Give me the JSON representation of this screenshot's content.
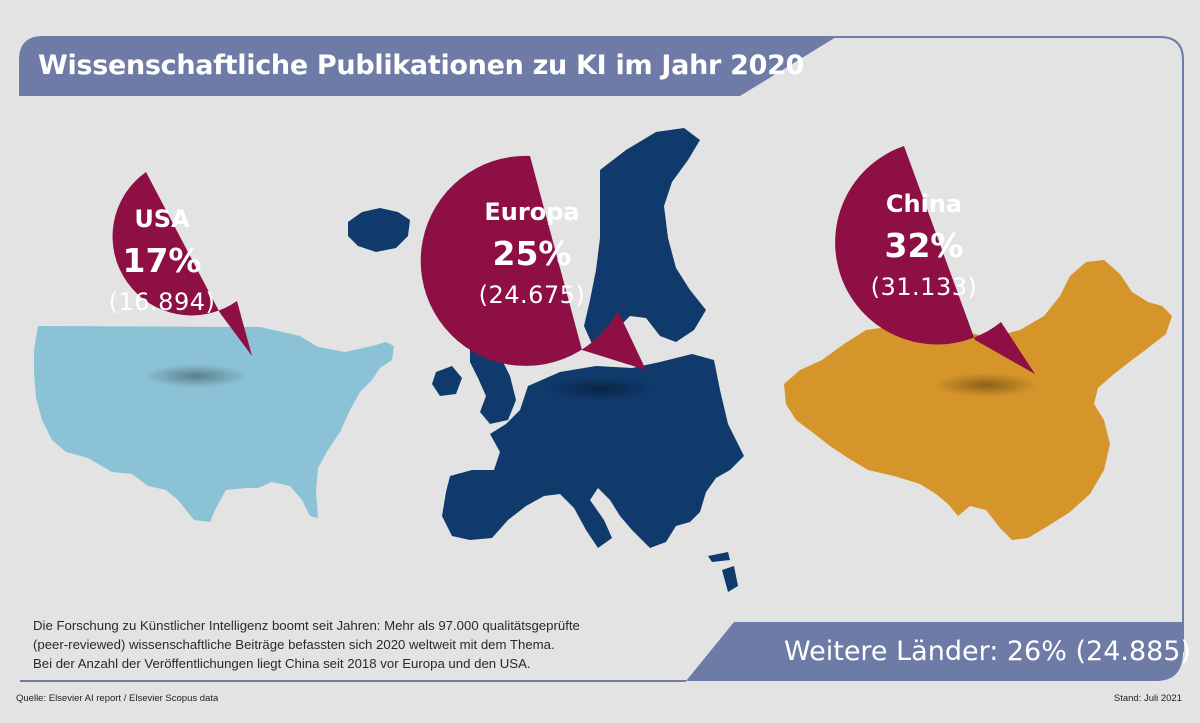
{
  "title": "Wissenschaftliche Publikationen zu KI im Jahr 2020",
  "colors": {
    "background": "#e3e3e3",
    "banner": "#6e7ba6",
    "bubble": "#8e0f43",
    "usa_map": "#8cc2d6",
    "europe_map": "#0f3a6b",
    "china_map": "#d6952a"
  },
  "regions": [
    {
      "name": "USA",
      "percent": "17%",
      "count": "(16.894)",
      "share": 17,
      "publications": 16894
    },
    {
      "name": "Europa",
      "percent": "25%",
      "count": "(24.675)",
      "share": 25,
      "publications": 24675
    },
    {
      "name": "China",
      "percent": "32%",
      "count": "(31.133)",
      "share": 32,
      "publications": 31133
    }
  ],
  "description": [
    "Die Forschung zu Künstlicher Intelligenz boomt seit Jahren: Mehr als 97.000 qualitätsgeprüfte",
    "(peer-reviewed) wissenschaftliche Beiträge befassten sich 2020 weltweit mit dem Thema.",
    "Bei der Anzahl der Veröffentlichungen liegt China seit 2018 vor Europa und den USA."
  ],
  "further_countries": "Weitere Länder: 26% (24.885)",
  "source": "Quelle: Elsevier AI report / Elsevier Scopus data",
  "stand": "Stand: Juli 2021"
}
